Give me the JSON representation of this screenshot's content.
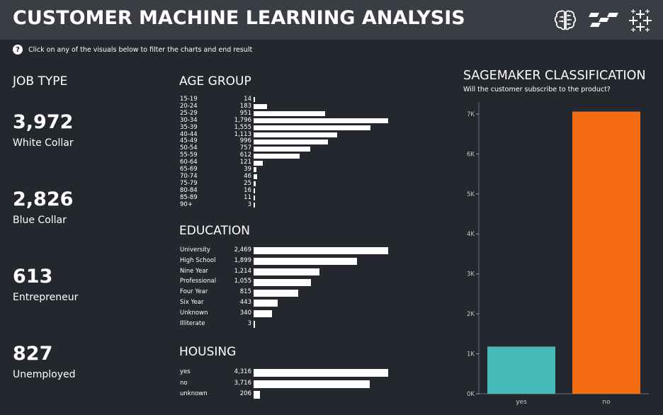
{
  "header": {
    "title": "CUSTOMER MACHINE LEARNING ANALYSIS",
    "icons": [
      "brain-circuit-icon",
      "sagemaker-logo-icon",
      "tableau-logo-icon"
    ]
  },
  "help_text": "Click on any of the visuals below to filter the charts and end result",
  "job_type": {
    "title": "JOB TYPE",
    "items": [
      {
        "value": "3,972",
        "label": "White Collar"
      },
      {
        "value": "2,826",
        "label": "Blue Collar"
      },
      {
        "value": "613",
        "label": "Entrepreneur"
      },
      {
        "value": "827",
        "label": "Unemployed"
      }
    ]
  },
  "age_group": {
    "title": "AGE GROUP",
    "chart_data": {
      "type": "bar",
      "orientation": "horizontal",
      "categories": [
        "15-19",
        "20-24",
        "25-29",
        "30-34",
        "35-39",
        "40-44",
        "45-49",
        "50-54",
        "55-59",
        "60-64",
        "65-69",
        "70-74",
        "75-79",
        "80-84",
        "85-89",
        "90+"
      ],
      "values": [
        14,
        183,
        951,
        1796,
        1555,
        1113,
        996,
        757,
        612,
        121,
        39,
        46,
        25,
        16,
        11,
        3
      ],
      "labels": [
        "14",
        "183",
        "951",
        "1,796",
        "1,555",
        "1,113",
        "996",
        "757",
        "612",
        "121",
        "39",
        "46",
        "25",
        "16",
        "11",
        "3"
      ]
    }
  },
  "education": {
    "title": "EDUCATION",
    "chart_data": {
      "type": "bar",
      "orientation": "horizontal",
      "categories": [
        "University",
        "High School",
        "Nine Year",
        "Professional",
        "Four Year",
        "Six Year",
        "Unknown",
        "Illiterate"
      ],
      "values": [
        2469,
        1899,
        1214,
        1055,
        815,
        443,
        340,
        3
      ],
      "labels": [
        "2,469",
        "1,899",
        "1,214",
        "1,055",
        "815",
        "443",
        "340",
        "3"
      ]
    }
  },
  "housing": {
    "title": "HOUSING",
    "chart_data": {
      "type": "bar",
      "orientation": "horizontal",
      "categories": [
        "yes",
        "no",
        "unknown"
      ],
      "values": [
        4316,
        3716,
        206
      ],
      "labels": [
        "4,316",
        "3,716",
        "206"
      ]
    }
  },
  "sagemaker": {
    "title": "SAGEMAKER CLASSIFICATION",
    "subtitle": "Will the customer subscribe to the product?",
    "chart_data": {
      "type": "bar",
      "categories": [
        "yes",
        "no"
      ],
      "values": [
        1180,
        7060
      ],
      "colors": [
        "#45bab6",
        "#f46d10"
      ],
      "ylim": [
        0,
        7300
      ],
      "yticks": [
        0,
        1000,
        2000,
        3000,
        4000,
        5000,
        6000,
        7000
      ],
      "ytick_labels": [
        "0K",
        "1K",
        "2K",
        "3K",
        "4K",
        "5K",
        "6K",
        "7K"
      ]
    }
  }
}
